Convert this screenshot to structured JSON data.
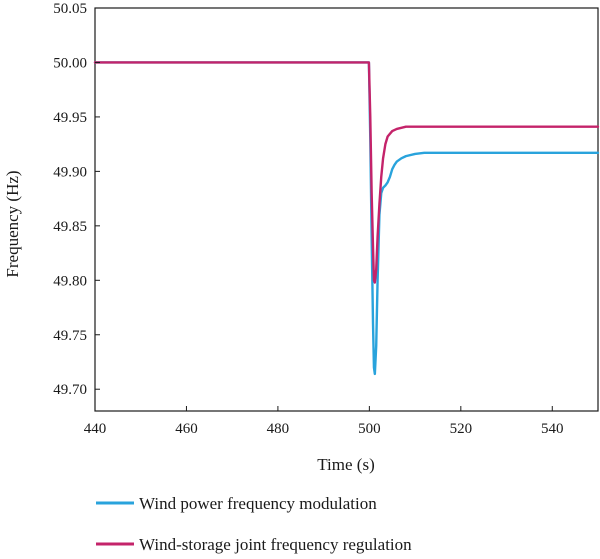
{
  "chart_data": {
    "type": "line",
    "xlabel": "Time (s)",
    "ylabel": "Frequency (Hz)",
    "xlim": [
      440,
      550
    ],
    "ylim": [
      49.68,
      50.05
    ],
    "xticks": [
      440,
      460,
      480,
      500,
      520,
      540
    ],
    "yticks": [
      49.7,
      49.75,
      49.8,
      49.85,
      49.9,
      49.95,
      50.0,
      50.05
    ],
    "ytick_labels": [
      "49.70",
      "49.75",
      "49.80",
      "49.85",
      "49.90",
      "49.95",
      "50.00",
      "50.05"
    ],
    "grid": false,
    "legend_position": "bottom",
    "series": [
      {
        "name": "Wind power frequency modulation",
        "color": "#29a3dc",
        "x": [
          440,
          499.9,
          500.2,
          500.5,
          500.8,
          501.0,
          501.2,
          501.5,
          501.8,
          502.2,
          502.6,
          503.0,
          503.5,
          504.0,
          504.5,
          505.0,
          505.5,
          506.0,
          507.0,
          508.0,
          510.0,
          512.0,
          515.0,
          520.0,
          530.0,
          540.0,
          550.0
        ],
        "y": [
          50.0,
          50.0,
          49.93,
          49.84,
          49.76,
          49.72,
          49.714,
          49.74,
          49.8,
          49.86,
          49.88,
          49.885,
          49.887,
          49.89,
          49.895,
          49.902,
          49.906,
          49.909,
          49.912,
          49.914,
          49.916,
          49.917,
          49.917,
          49.917,
          49.917,
          49.917,
          49.917
        ]
      },
      {
        "name": "Wind-storage joint frequency regulation",
        "color": "#c4236a",
        "x": [
          440,
          499.9,
          500.2,
          500.5,
          500.8,
          501.0,
          501.2,
          501.5,
          501.8,
          502.2,
          502.6,
          503.0,
          503.5,
          504.0,
          505.0,
          506.0,
          507.0,
          508.0,
          510.0,
          515.0,
          520.0,
          530.0,
          540.0,
          550.0
        ],
        "y": [
          50.0,
          50.0,
          49.95,
          49.88,
          49.83,
          49.8,
          49.798,
          49.81,
          49.84,
          49.87,
          49.895,
          49.912,
          49.925,
          49.932,
          49.937,
          49.939,
          49.94,
          49.941,
          49.941,
          49.941,
          49.941,
          49.941,
          49.941,
          49.941
        ]
      }
    ]
  }
}
